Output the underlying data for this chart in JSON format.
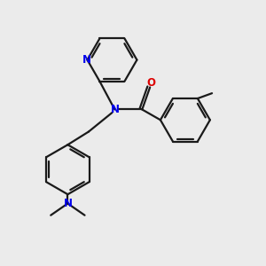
{
  "bg_color": "#ebebeb",
  "bond_color": "#1a1a1a",
  "n_color": "#0000ee",
  "o_color": "#dd0000",
  "line_width": 1.6,
  "fig_size": [
    3.0,
    3.0
  ],
  "dpi": 100,
  "xlim": [
    0,
    10
  ],
  "ylim": [
    0,
    10
  ]
}
